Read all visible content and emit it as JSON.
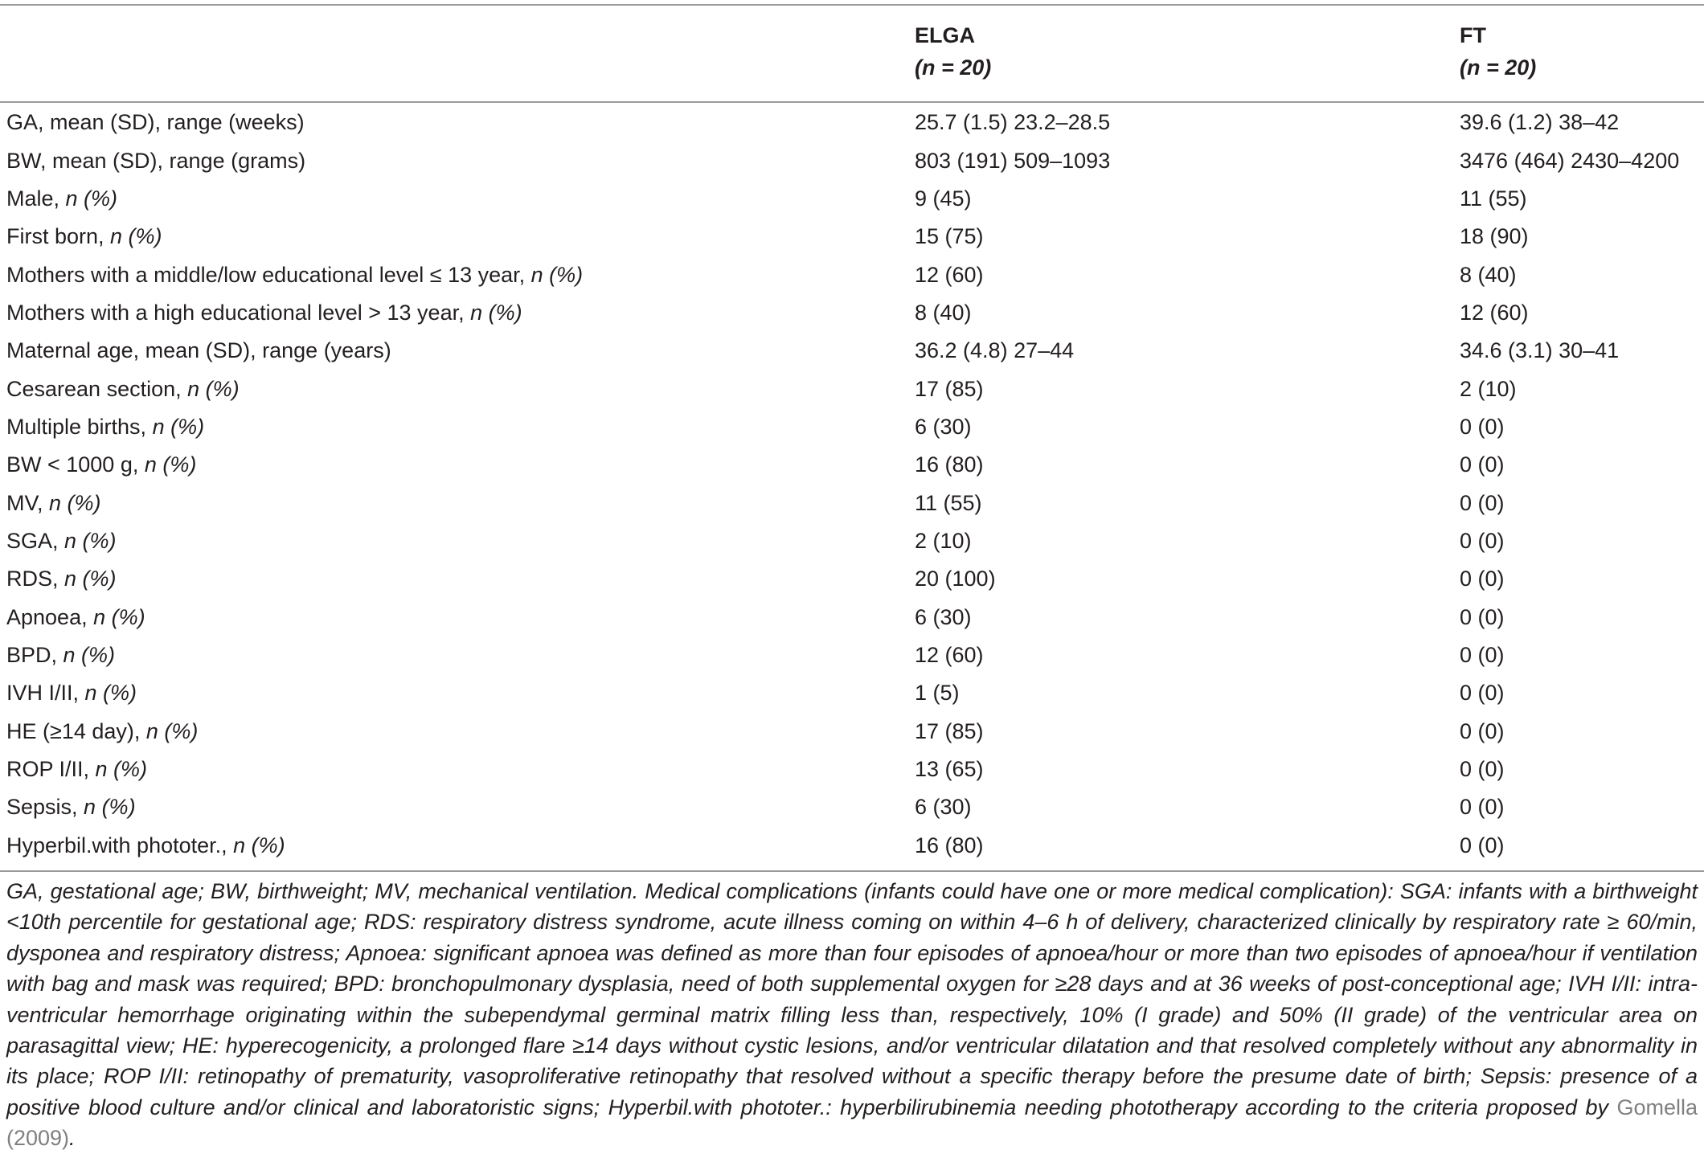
{
  "table": {
    "columns": [
      {
        "name": "ELGA",
        "n_label": "(n = 20)"
      },
      {
        "name": "FT",
        "n_label": "(n = 20)"
      }
    ],
    "rows": [
      {
        "label": "GA, mean (SD), range (weeks)",
        "label_suffix": "",
        "elga": "25.7 (1.5) 23.2–28.5",
        "ft": "39.6 (1.2) 38–42"
      },
      {
        "label": "BW, mean (SD), range (grams)",
        "label_suffix": "",
        "elga": "803 (191) 509–1093",
        "ft": "3476 (464) 2430–4200"
      },
      {
        "label": "Male, ",
        "label_suffix": "n (%)",
        "elga": "9 (45)",
        "ft": "11 (55)"
      },
      {
        "label": "First born, ",
        "label_suffix": "n (%)",
        "elga": "15 (75)",
        "ft": "18 (90)"
      },
      {
        "label": "Mothers with a middle/low educational level ≤ 13 year, ",
        "label_suffix": "n (%)",
        "elga": "12 (60)",
        "ft": "8 (40)"
      },
      {
        "label": "Mothers with a high educational level > 13 year, ",
        "label_suffix": "n (%)",
        "elga": "8 (40)",
        "ft": "12 (60)"
      },
      {
        "label": "Maternal age, mean (SD), range (years)",
        "label_suffix": "",
        "elga": "36.2 (4.8) 27–44",
        "ft": "34.6 (3.1) 30–41"
      },
      {
        "label": "Cesarean section, ",
        "label_suffix": "n (%)",
        "elga": "17 (85)",
        "ft": "2 (10)"
      },
      {
        "label": "Multiple births, ",
        "label_suffix": "n (%)",
        "elga": "6 (30)",
        "ft": "0 (0)"
      },
      {
        "label": "BW < 1000 g, ",
        "label_suffix": "n (%)",
        "elga": "16 (80)",
        "ft": "0 (0)"
      },
      {
        "label": "MV, ",
        "label_suffix": "n (%)",
        "elga": "11 (55)",
        "ft": "0 (0)"
      },
      {
        "label": "SGA, ",
        "label_suffix": "n (%)",
        "elga": "2 (10)",
        "ft": "0 (0)"
      },
      {
        "label": "RDS, ",
        "label_suffix": "n (%)",
        "elga": "20 (100)",
        "ft": "0 (0)"
      },
      {
        "label": "Apnoea, ",
        "label_suffix": "n (%)",
        "elga": "6 (30)",
        "ft": "0 (0)"
      },
      {
        "label": "BPD, ",
        "label_suffix": "n (%)",
        "elga": "12 (60)",
        "ft": "0 (0)"
      },
      {
        "label": "IVH I/II, ",
        "label_suffix": "n (%)",
        "elga": "1 (5)",
        "ft": "0 (0)"
      },
      {
        "label": "HE (≥14 day), ",
        "label_suffix": "n (%)",
        "elga": "17 (85)",
        "ft": "0 (0)"
      },
      {
        "label": "ROP I/II, ",
        "label_suffix": "n (%)",
        "elga": "13 (65)",
        "ft": "0 (0)"
      },
      {
        "label": "Sepsis, ",
        "label_suffix": "n (%)",
        "elga": "6 (30)",
        "ft": "0 (0)"
      },
      {
        "label": "Hyperbil.with phototer., ",
        "label_suffix": "n (%)",
        "elga": "16 (80)",
        "ft": "0 (0)"
      }
    ]
  },
  "footnote": {
    "text": "GA, gestational age; BW, birthweight; MV, mechanical ventilation. Medical complications (infants could have one or more medical complication): SGA: infants with a birthweight <10th percentile for gestational age; RDS: respiratory distress syndrome, acute illness coming on within 4–6 h of delivery, characterized clinically by respiratory rate ≥ 60/min, dysponea and respiratory distress; Apnoea: significant apnoea was defined as more than four episodes of apnoea/hour or more than two episodes of apnoea/hour if ventilation with bag and mask was required; BPD: bronchopulmonary dysplasia, need of both supplemental oxygen for ≥28 days and at 36 weeks of post-conceptional age; IVH I/II: intra-ventricular hemorrhage originating within the subependymal germinal matrix filling less than, respectively, 10% (I grade) and 50% (II grade) of the ventricular area on parasagittal view; HE: hyperecogenicity, a prolonged flare ≥14 days without cystic lesions, and/or ventricular dilatation and that resolved completely without any abnormality in its place; ROP I/II: retinopathy of prematurity, vasoproliferative retinopathy that resolved without a specific therapy before the presume date of birth; Sepsis: presence of a positive blood culture and/or clinical and laboratoristic signs; Hyperbil.with phototer.: hyperbilirubinemia needing phototherapy according to the criteria proposed by ",
    "reference": "Gomella (2009)",
    "end": "."
  },
  "colors": {
    "text": "#231f20",
    "rule": "#9a9a9a",
    "reference_link": "#808080"
  }
}
